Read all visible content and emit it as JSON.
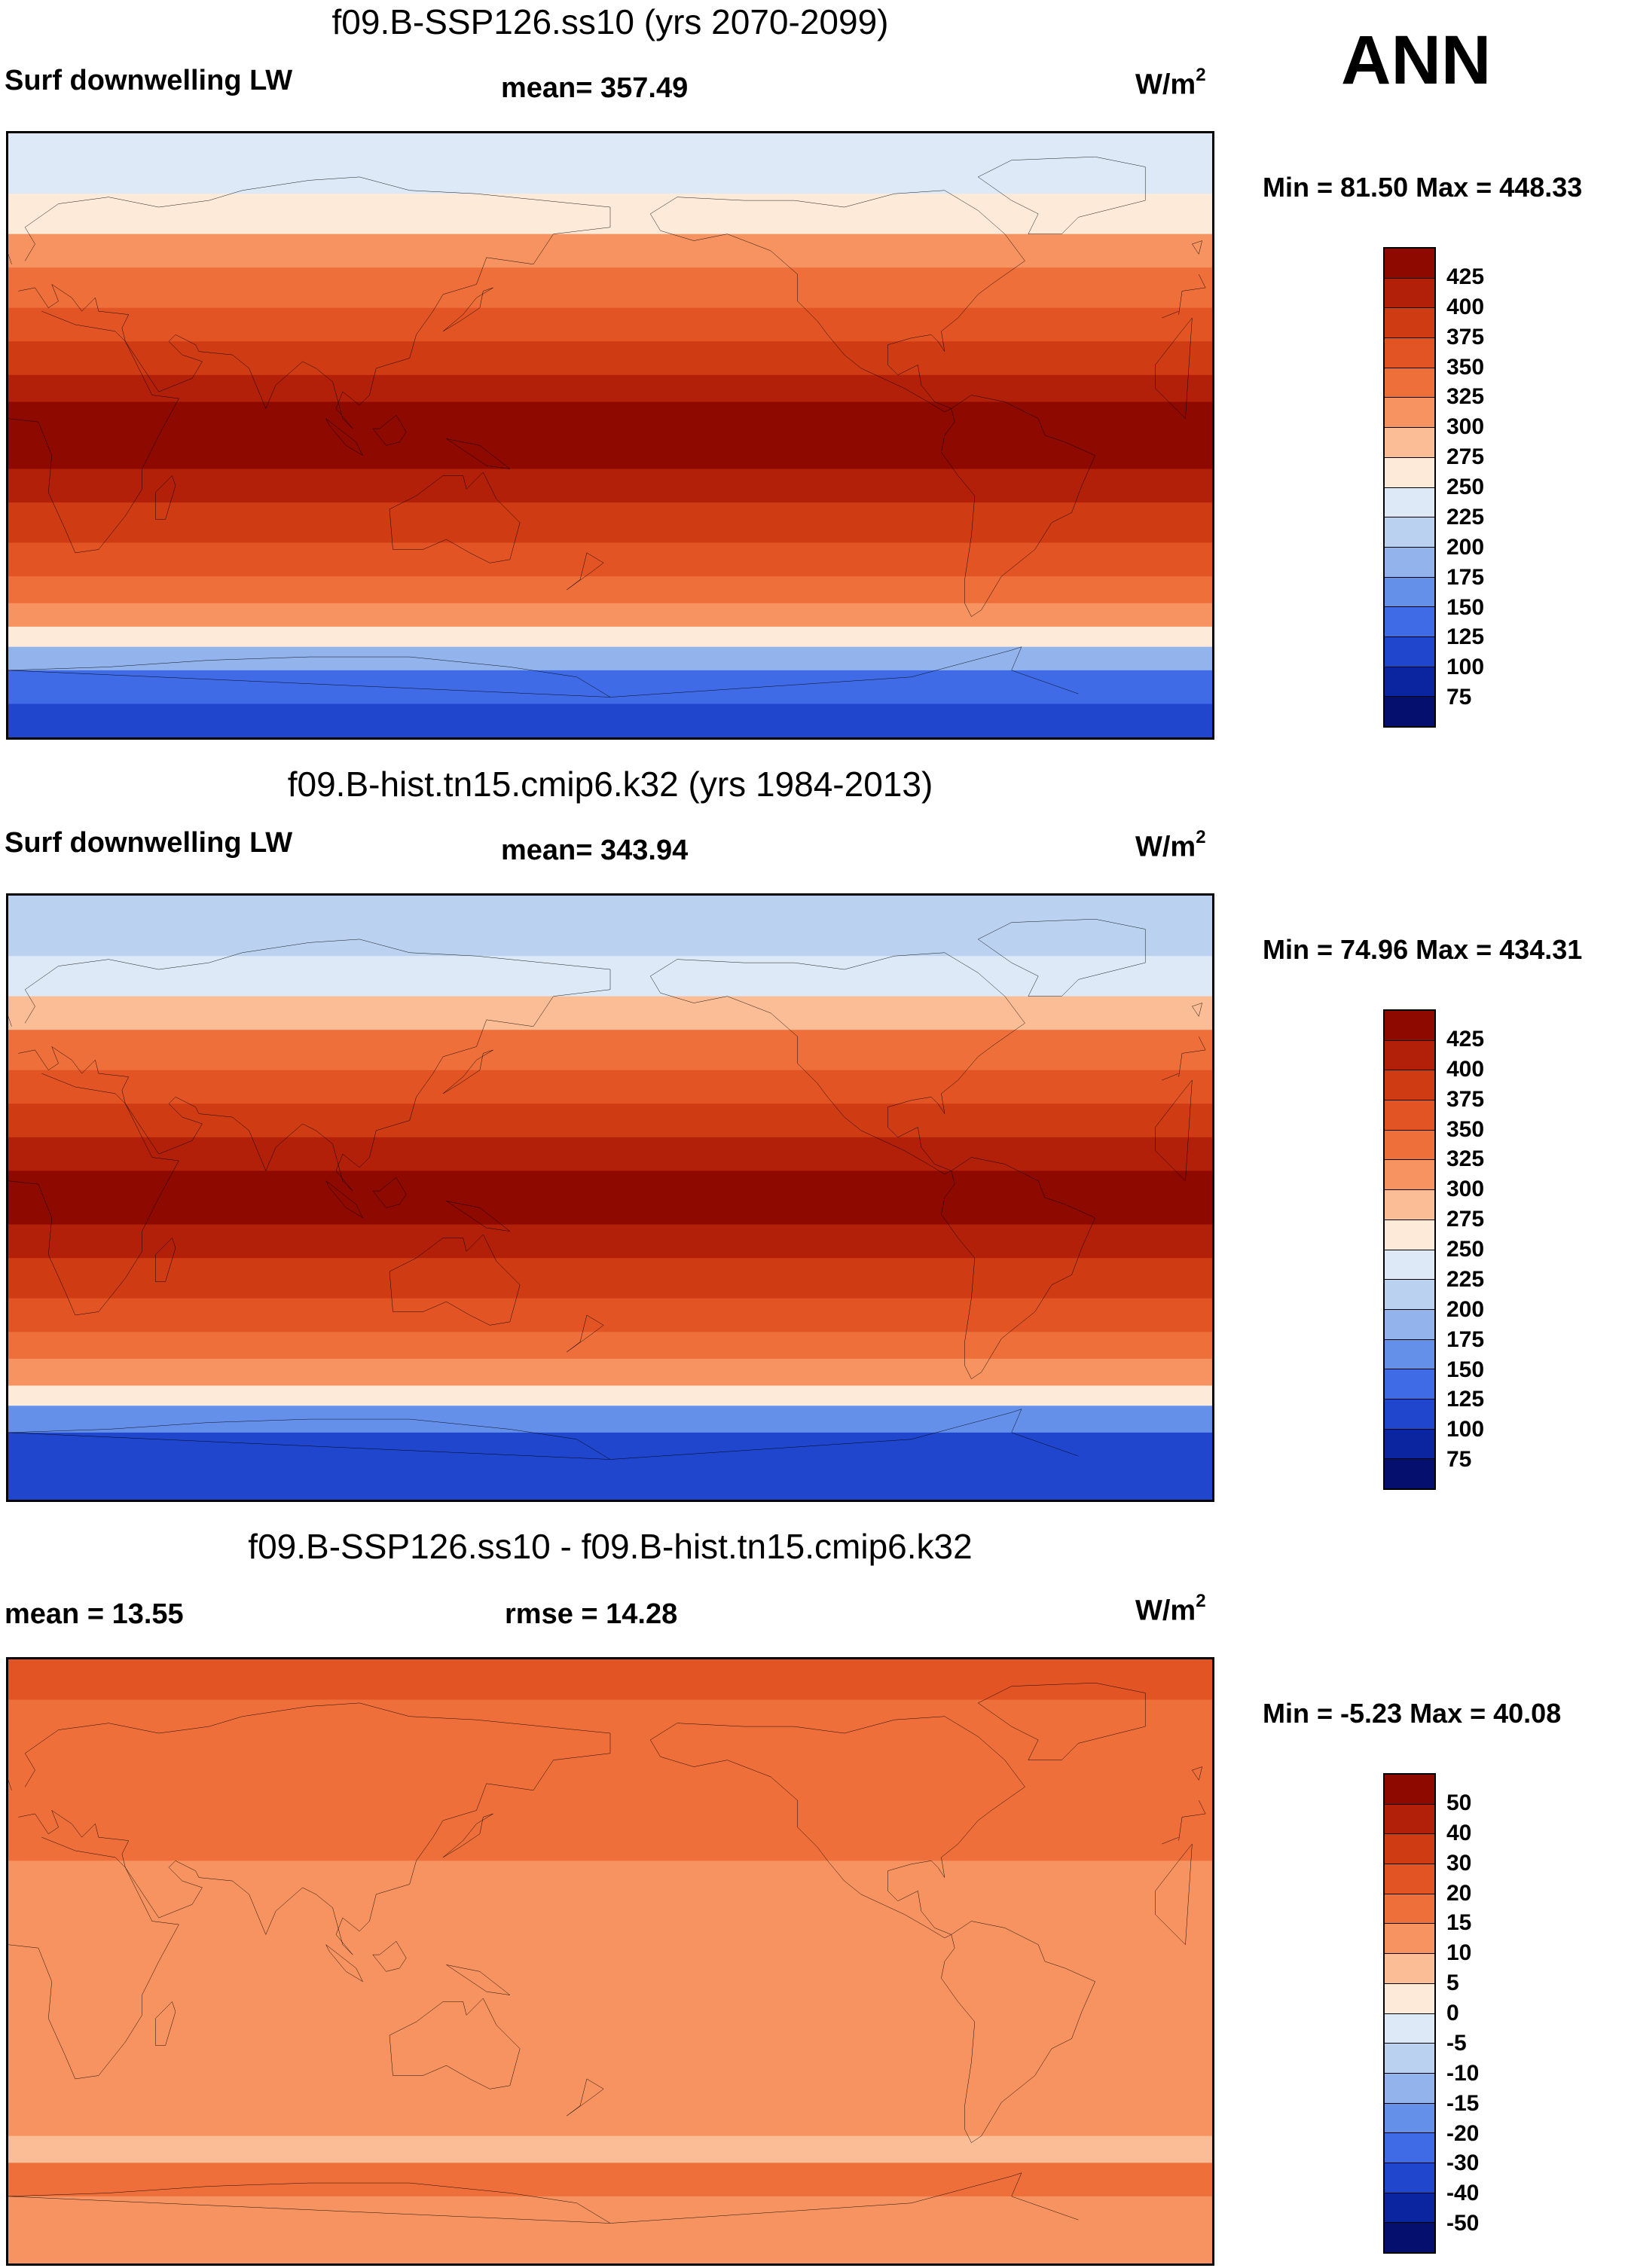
{
  "season": "ANN",
  "panels": [
    {
      "title": "f09.B-SSP126.ss10 (yrs 2070-2099)",
      "left_label": "Surf downwelling LW",
      "center_label": "mean= 357.49",
      "units": "W/m",
      "units_sup": "2",
      "minmax": "Min =  81.50 Max = 448.33"
    },
    {
      "title": "f09.B-hist.tn15.cmip6.k32 (yrs 1984-2013)",
      "left_label": "Surf downwelling LW",
      "center_label": "mean= 343.94",
      "units": "W/m",
      "units_sup": "2",
      "minmax": "Min =  74.96 Max = 434.31"
    },
    {
      "title": "f09.B-SSP126.ss10 - f09.B-hist.tn15.cmip6.k32",
      "left_label": "mean =  13.55",
      "center_label": "rmse =  14.28",
      "units": "W/m",
      "units_sup": "2",
      "minmax": "Min =  -5.23 Max =  40.08"
    }
  ],
  "chart_data": [
    {
      "type": "heatmap",
      "title": "f09.B-SSP126.ss10 (yrs 2070-2099)",
      "variable": "Surf downwelling LW",
      "units": "W/m2",
      "mean": 357.49,
      "min": 81.5,
      "max": 448.33,
      "colorbar_levels": [
        "425",
        "400",
        "375",
        "350",
        "325",
        "300",
        "275",
        "250",
        "225",
        "200",
        "175",
        "150",
        "125",
        "100",
        "75"
      ],
      "colorbar_colors": [
        "#8e0a00",
        "#b3200a",
        "#cf3b12",
        "#e35424",
        "#ef6f3b",
        "#f69360",
        "#fbbd96",
        "#feead9",
        "#dde9f6",
        "#bad2f0",
        "#92b3ec",
        "#6590ea",
        "#3f6be6",
        "#1f46cd",
        "#0b25a0",
        "#050f6e"
      ],
      "bands": [
        {
          "lat_range": [
            72,
            90
          ],
          "level": "225"
        },
        {
          "lat_range": [
            60,
            72
          ],
          "level": "250"
        },
        {
          "lat_range": [
            50,
            60
          ],
          "level": "300"
        },
        {
          "lat_range": [
            38,
            50
          ],
          "level": "325"
        },
        {
          "lat_range": [
            28,
            38
          ],
          "level": "350"
        },
        {
          "lat_range": [
            18,
            28
          ],
          "level": "375"
        },
        {
          "lat_range": [
            10,
            18
          ],
          "level": "400"
        },
        {
          "lat_range": [
            -10,
            10
          ],
          "level": "425"
        },
        {
          "lat_range": [
            -20,
            -10
          ],
          "level": "400"
        },
        {
          "lat_range": [
            -32,
            -20
          ],
          "level": "375"
        },
        {
          "lat_range": [
            -42,
            -32
          ],
          "level": "350"
        },
        {
          "lat_range": [
            -50,
            -42
          ],
          "level": "325"
        },
        {
          "lat_range": [
            -57,
            -50
          ],
          "level": "300"
        },
        {
          "lat_range": [
            -63,
            -57
          ],
          "level": "250"
        },
        {
          "lat_range": [
            -70,
            -63
          ],
          "level": "175"
        },
        {
          "lat_range": [
            -80,
            -70
          ],
          "level": "125"
        },
        {
          "lat_range": [
            -90,
            -80
          ],
          "level": "100"
        }
      ]
    },
    {
      "type": "heatmap",
      "title": "f09.B-hist.tn15.cmip6.k32 (yrs 1984-2013)",
      "variable": "Surf downwelling LW",
      "units": "W/m2",
      "mean": 343.94,
      "min": 74.96,
      "max": 434.31,
      "colorbar_levels": [
        "425",
        "400",
        "375",
        "350",
        "325",
        "300",
        "275",
        "250",
        "225",
        "200",
        "175",
        "150",
        "125",
        "100",
        "75"
      ],
      "colorbar_colors": [
        "#8e0a00",
        "#b3200a",
        "#cf3b12",
        "#e35424",
        "#ef6f3b",
        "#f69360",
        "#fbbd96",
        "#feead9",
        "#dde9f6",
        "#bad2f0",
        "#92b3ec",
        "#6590ea",
        "#3f6be6",
        "#1f46cd",
        "#0b25a0",
        "#050f6e"
      ],
      "bands": [
        {
          "lat_range": [
            72,
            90
          ],
          "level": "200"
        },
        {
          "lat_range": [
            60,
            72
          ],
          "level": "225"
        },
        {
          "lat_range": [
            50,
            60
          ],
          "level": "275"
        },
        {
          "lat_range": [
            38,
            50
          ],
          "level": "325"
        },
        {
          "lat_range": [
            28,
            38
          ],
          "level": "350"
        },
        {
          "lat_range": [
            18,
            28
          ],
          "level": "375"
        },
        {
          "lat_range": [
            8,
            18
          ],
          "level": "400"
        },
        {
          "lat_range": [
            -8,
            8
          ],
          "level": "425"
        },
        {
          "lat_range": [
            -18,
            -8
          ],
          "level": "400"
        },
        {
          "lat_range": [
            -30,
            -18
          ],
          "level": "375"
        },
        {
          "lat_range": [
            -40,
            -30
          ],
          "level": "350"
        },
        {
          "lat_range": [
            -48,
            -40
          ],
          "level": "325"
        },
        {
          "lat_range": [
            -56,
            -48
          ],
          "level": "300"
        },
        {
          "lat_range": [
            -62,
            -56
          ],
          "level": "250"
        },
        {
          "lat_range": [
            -70,
            -62
          ],
          "level": "150"
        },
        {
          "lat_range": [
            -80,
            -70
          ],
          "level": "100"
        },
        {
          "lat_range": [
            -90,
            -80
          ],
          "level": "100"
        }
      ]
    },
    {
      "type": "heatmap",
      "title": "f09.B-SSP126.ss10 - f09.B-hist.tn15.cmip6.k32",
      "units": "W/m2",
      "mean": 13.55,
      "rmse": 14.28,
      "min": -5.23,
      "max": 40.08,
      "colorbar_levels": [
        "50",
        "40",
        "30",
        "20",
        "15",
        "10",
        "5",
        "0",
        "-5",
        "-10",
        "-15",
        "-20",
        "-30",
        "-40",
        "-50"
      ],
      "colorbar_colors": [
        "#8e0a00",
        "#b3200a",
        "#cf3b12",
        "#e35424",
        "#ef6f3b",
        "#f69360",
        "#fbbd96",
        "#feead9",
        "#dde9f6",
        "#bad2f0",
        "#92b3ec",
        "#6590ea",
        "#3f6be6",
        "#1f46cd",
        "#0b25a0",
        "#050f6e"
      ],
      "bands": [
        {
          "lat_range": [
            78,
            90
          ],
          "level": "20"
        },
        {
          "lat_range": [
            66,
            78
          ],
          "level": "15"
        },
        {
          "lat_range": [
            50,
            66
          ],
          "level": "15"
        },
        {
          "lat_range": [
            30,
            50
          ],
          "level": "15"
        },
        {
          "lat_range": [
            12,
            30
          ],
          "level": "10"
        },
        {
          "lat_range": [
            0,
            12
          ],
          "level": "10"
        },
        {
          "lat_range": [
            -20,
            0
          ],
          "level": "10"
        },
        {
          "lat_range": [
            -40,
            -20
          ],
          "level": "10"
        },
        {
          "lat_range": [
            -52,
            -40
          ],
          "level": "10"
        },
        {
          "lat_range": [
            -60,
            -52
          ],
          "level": "5"
        },
        {
          "lat_range": [
            -70,
            -60
          ],
          "level": "15"
        },
        {
          "lat_range": [
            -80,
            -70
          ],
          "level": "10"
        },
        {
          "lat_range": [
            -90,
            -80
          ],
          "level": "10"
        }
      ]
    }
  ]
}
